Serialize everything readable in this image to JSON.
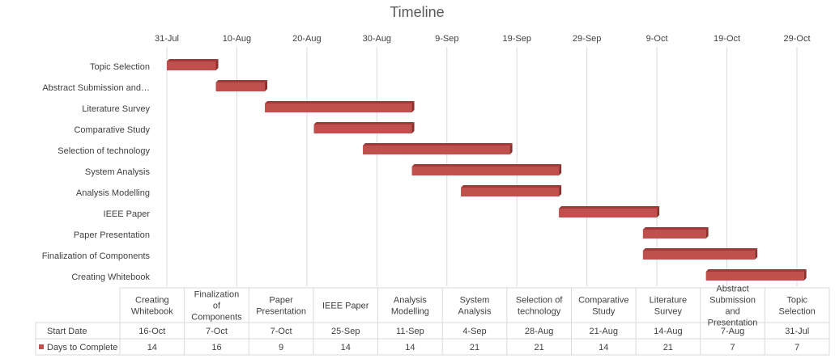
{
  "chart_data": {
    "type": "bar",
    "orientation": "horizontal-gantt",
    "title": "Timeline",
    "x_axis": {
      "type": "date",
      "ticks": [
        "31-Jul",
        "10-Aug",
        "20-Aug",
        "30-Aug",
        "9-Sep",
        "19-Sep",
        "29-Sep",
        "9-Oct",
        "19-Oct",
        "29-Oct"
      ],
      "range": [
        "31-Jul",
        "29-Oct"
      ],
      "position": "top",
      "grid": true
    },
    "categories": [
      "Topic Selection",
      "Abstract Submission and…",
      "Literature Survey",
      "Comparative Study",
      "Selection of technology",
      "System Analysis",
      "Analysis Modelling",
      "IEEE Paper",
      "Paper Presentation",
      "Finalization of Components",
      "Creating Whitebook"
    ],
    "series": [
      {
        "name": "Start Date",
        "color": "#ffffff",
        "hidden_bars": true,
        "values": [
          "31-Jul",
          "7-Aug",
          "14-Aug",
          "21-Aug",
          "28-Aug",
          "4-Sep",
          "11-Sep",
          "25-Sep",
          "7-Oct",
          "7-Oct",
          "16-Oct"
        ]
      },
      {
        "name": "Days to Complete",
        "color": "#c0504d",
        "values": [
          7,
          7,
          21,
          14,
          21,
          21,
          14,
          14,
          9,
          16,
          14
        ]
      }
    ],
    "legend": "in data table",
    "data_table": {
      "columns": [
        "Creating Whitebook",
        "Finalization of Components",
        "Paper Presentation",
        "IEEE Paper",
        "Analysis Modelling",
        "System Analysis",
        "Selection of technology",
        "Comparative Study",
        "Literature Survey",
        "Abstract Submission and Presentation",
        "Topic Selection"
      ],
      "rows": [
        {
          "label": "Start Date",
          "values": [
            "16-Oct",
            "7-Oct",
            "7-Oct",
            "25-Sep",
            "11-Sep",
            "4-Sep",
            "28-Aug",
            "21-Aug",
            "14-Aug",
            "7-Aug",
            "31-Jul"
          ]
        },
        {
          "label": "Days to Complete",
          "values": [
            "14",
            "16",
            "9",
            "14",
            "14",
            "21",
            "21",
            "14",
            "21",
            "7",
            "7"
          ]
        }
      ]
    }
  }
}
